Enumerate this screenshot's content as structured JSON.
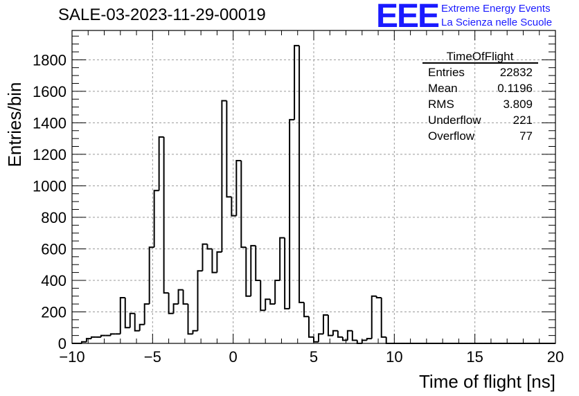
{
  "header": {
    "run_title": "SALE-03-2023-11-29-00019",
    "logo_mark": "EEE",
    "logo_line1": "Extreme Energy Events",
    "logo_line2": "La Scienza nelle Scuole"
  },
  "colors": {
    "accent": "#1a1aff",
    "line": "#000000",
    "grid": "#999999"
  },
  "stats": {
    "title": "TimeOfFlight",
    "rows": [
      {
        "label": "Entries",
        "value": "22832"
      },
      {
        "label": "Mean",
        "value": "0.1196"
      },
      {
        "label": "RMS",
        "value": "3.809"
      },
      {
        "label": "Underflow",
        "value": "221"
      },
      {
        "label": "Overflow",
        "value": "77"
      }
    ]
  },
  "chart_data": {
    "type": "histogram",
    "xlabel": "Time of flight [ns]",
    "ylabel": "Entries/bin",
    "xlim": [
      -10,
      20
    ],
    "ylim": [
      0,
      1800
    ],
    "grid": true,
    "bin_width": 0.3,
    "x_ticks": [
      -10,
      -5,
      0,
      5,
      10,
      15,
      20
    ],
    "y_ticks": [
      0,
      200,
      400,
      600,
      800,
      1000,
      1200,
      1400,
      1600,
      1800
    ],
    "bin_edges_start": -10,
    "values": [
      0,
      0,
      10,
      30,
      40,
      40,
      50,
      50,
      60,
      60,
      290,
      100,
      190,
      80,
      120,
      250,
      610,
      970,
      1310,
      320,
      190,
      250,
      340,
      250,
      60,
      80,
      460,
      630,
      600,
      450,
      580,
      1540,
      930,
      810,
      1160,
      610,
      300,
      620,
      400,
      210,
      280,
      250,
      400,
      670,
      220,
      1420,
      1890,
      260,
      170,
      40,
      10,
      60,
      180,
      50,
      80,
      40,
      20,
      80,
      20,
      0,
      20,
      30,
      300,
      290,
      40,
      0,
      0,
      0,
      0,
      0,
      0,
      0,
      0,
      0,
      0,
      0,
      0,
      0,
      0,
      0,
      0,
      0,
      0,
      0,
      0,
      0,
      0,
      0,
      0,
      0,
      0,
      0,
      0,
      0,
      0,
      0,
      0,
      0,
      0,
      0
    ]
  }
}
